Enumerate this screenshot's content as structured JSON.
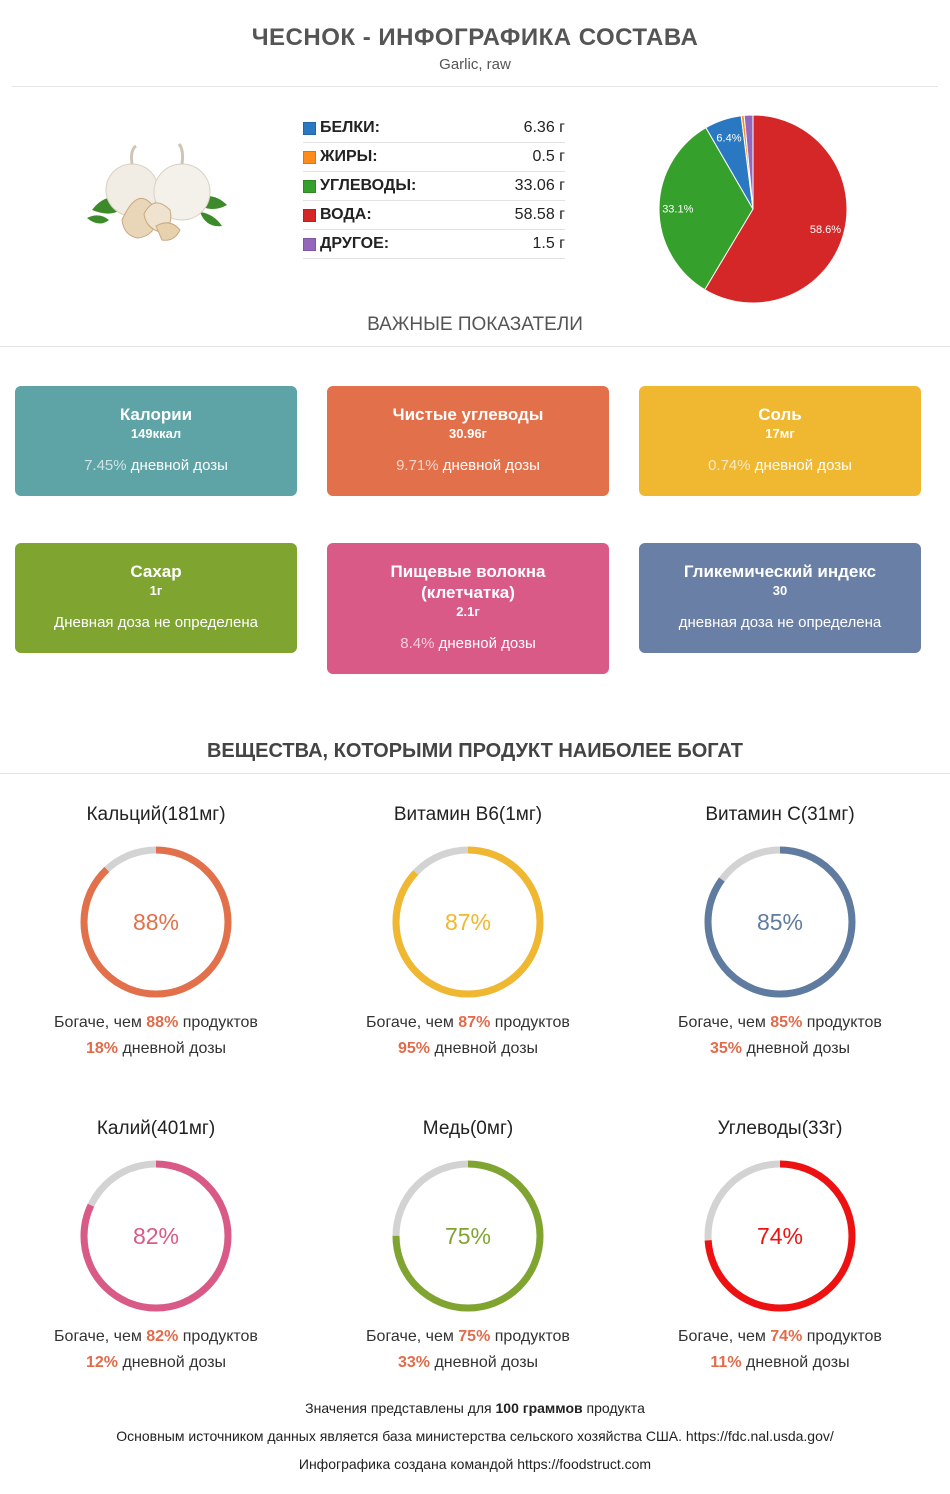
{
  "header": {
    "title": "ЧЕСНОК - ИНФОГРАФИКА СОСТАВА",
    "subtitle": "Garlic, raw"
  },
  "macros": [
    {
      "label": "БЕЛКИ:",
      "value": "6.36 г",
      "color": "#2b78c2"
    },
    {
      "label": "ЖИРЫ:",
      "value": "0.5 г",
      "color": "#ff8c1a"
    },
    {
      "label": "УГЛЕВОДЫ:",
      "value": "33.06 г",
      "color": "#35a02c"
    },
    {
      "label": "ВОДА:",
      "value": "58.58 г",
      "color": "#d62728"
    },
    {
      "label": "ДРУГОЕ:",
      "value": "1.5 г",
      "color": "#9467bd"
    }
  ],
  "chart_data": {
    "type": "pie",
    "slices": [
      {
        "value": 58.58,
        "label": "58.6%",
        "color": "#d62728"
      },
      {
        "value": 33.06,
        "label": "33.1%",
        "color": "#35a02c"
      },
      {
        "value": 6.36,
        "label": "6.4%",
        "color": "#2b78c2"
      },
      {
        "value": 0.5,
        "label": "",
        "color": "#ff8c1a"
      },
      {
        "value": 1.5,
        "label": "",
        "color": "#9467bd"
      }
    ]
  },
  "key_section": {
    "title": "ВАЖНЫЕ ПОКАЗАТЕЛИ"
  },
  "cards": [
    {
      "name": "Калории",
      "value": "149ккал",
      "pct": "7.45%",
      "pct_text": " дневной дозы",
      "color": "#5ea3a6"
    },
    {
      "name": "Чистые углеводы",
      "value": "30.96г",
      "pct": "9.71%",
      "pct_text": " дневной дозы",
      "color": "#e2704a"
    },
    {
      "name": "Соль",
      "value": "17мг",
      "pct": "0.74%",
      "pct_text": " дневной дозы",
      "color": "#f0b730"
    },
    {
      "name": "Сахар",
      "value": "1г",
      "pct": "",
      "pct_text": "Дневная доза не определена",
      "color": "#7fa530"
    },
    {
      "name": "Пищевые волокна (клетчатка)",
      "value": "2.1г",
      "pct": "8.4%",
      "pct_text": " дневной дозы",
      "color": "#d95a87"
    },
    {
      "name": "Гликемический индекс",
      "value": "30",
      "pct": "",
      "pct_text": "дневная доза не определена",
      "color": "#6a7fa6"
    }
  ],
  "rich_section": {
    "title": "ВЕЩЕСТВА, КОТОРЫМИ ПРОДУКТ НАИБОЛЕЕ БОГАТ"
  },
  "nutrients": [
    {
      "name": "Кальций",
      "amount": "(181мг)",
      "pct": 88,
      "pct_label": "88%",
      "daily": "18%",
      "color": "#e2704a"
    },
    {
      "name": "Витамин B6",
      "amount": "(1мг)",
      "pct": 87,
      "pct_label": "87%",
      "daily": "95%",
      "color": "#f0b730"
    },
    {
      "name": "Витамин C",
      "amount": "(31мг)",
      "pct": 85,
      "pct_label": "85%",
      "daily": "35%",
      "color": "#607ba0"
    },
    {
      "name": "Калий",
      "amount": "(401мг)",
      "pct": 82,
      "pct_label": "82%",
      "daily": "12%",
      "color": "#d95a87"
    },
    {
      "name": "Медь",
      "amount": "(0мг)",
      "pct": 75,
      "pct_label": "75%",
      "daily": "33%",
      "color": "#7fa530"
    },
    {
      "name": "Углеводы",
      "amount": "(33г)",
      "pct": 74,
      "pct_label": "74%",
      "daily": "11%",
      "color": "#ee1111"
    }
  ],
  "nutrient_text": {
    "richer_prefix": "Богаче, чем ",
    "richer_suffix": " продуктов",
    "daily_suffix": " дневной дозы"
  },
  "footer": {
    "line1_a": "Значения представлены для ",
    "line1_b": "100 граммов",
    "line1_c": " продукта",
    "line2": "Основным источником данных является база министерства сельского хозяйства США. https://fdc.nal.usda.gov/",
    "line3": "Инфографика создана командой https://foodstruct.com"
  }
}
